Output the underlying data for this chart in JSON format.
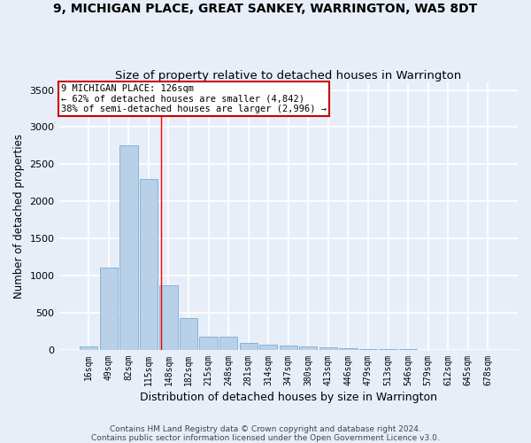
{
  "title": "9, MICHIGAN PLACE, GREAT SANKEY, WARRINGTON, WA5 8DT",
  "subtitle": "Size of property relative to detached houses in Warrington",
  "xlabel": "Distribution of detached houses by size in Warrington",
  "ylabel": "Number of detached properties",
  "footer_line1": "Contains HM Land Registry data © Crown copyright and database right 2024.",
  "footer_line2": "Contains public sector information licensed under the Open Government Licence v3.0.",
  "categories": [
    "16sqm",
    "49sqm",
    "82sqm",
    "115sqm",
    "148sqm",
    "182sqm",
    "215sqm",
    "248sqm",
    "281sqm",
    "314sqm",
    "347sqm",
    "380sqm",
    "413sqm",
    "446sqm",
    "479sqm",
    "513sqm",
    "546sqm",
    "579sqm",
    "612sqm",
    "645sqm",
    "678sqm"
  ],
  "values": [
    50,
    1105,
    2750,
    2300,
    875,
    425,
    175,
    175,
    100,
    65,
    55,
    50,
    35,
    25,
    15,
    10,
    8,
    5,
    3,
    2,
    1
  ],
  "bar_color": "#b8d0e8",
  "bar_edge_color": "#7aafd4",
  "background_color": "#e8eef8",
  "grid_color": "#ffffff",
  "red_line_x": 3.63,
  "annotation_text_line1": "9 MICHIGAN PLACE: 126sqm",
  "annotation_text_line2": "← 62% of detached houses are smaller (4,842)",
  "annotation_text_line3": "38% of semi-detached houses are larger (2,996) →",
  "annotation_box_edgecolor": "#cc0000",
  "ylim": [
    0,
    3600
  ],
  "yticks": [
    0,
    500,
    1000,
    1500,
    2000,
    2500,
    3000,
    3500
  ],
  "title_fontsize": 10,
  "subtitle_fontsize": 9.5,
  "xlabel_fontsize": 9,
  "ylabel_fontsize": 8.5,
  "tick_fontsize": 8,
  "annotation_fontsize": 7.5,
  "footer_fontsize": 6.5
}
